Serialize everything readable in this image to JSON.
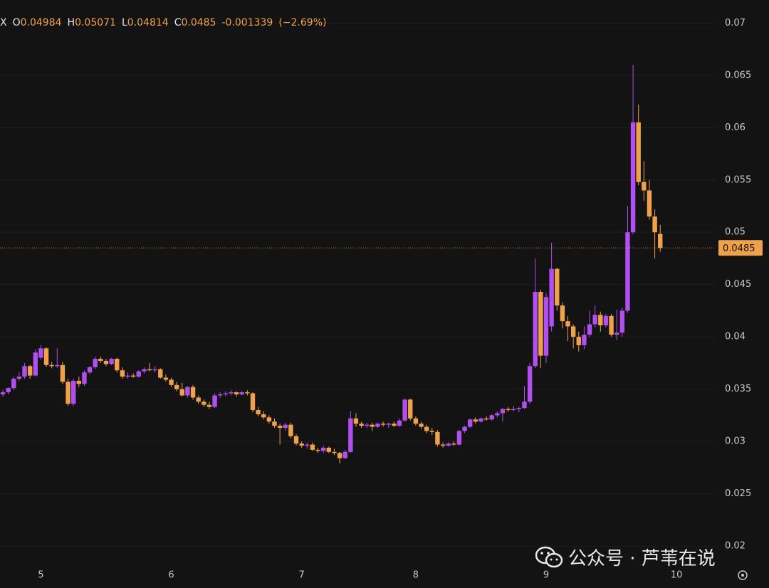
{
  "header": {
    "symbol": "X",
    "items": [
      {
        "key": "O",
        "value": "0.04984"
      },
      {
        "key": "H",
        "value": "0.05071"
      },
      {
        "key": "L",
        "value": "0.04814"
      },
      {
        "key": "C",
        "value": "0.0485"
      }
    ],
    "change": "-0.001339",
    "change_pct": "(−2.69%)"
  },
  "watermark": "公众号 · 芦苇在说",
  "chart_data": {
    "type": "candlestick",
    "up_color": "#b14ff0",
    "down_color": "#f0a24a",
    "ylim": [
      0.0181,
      0.0722
    ],
    "yticks": [
      0.02,
      0.025,
      0.03,
      0.035,
      0.04,
      0.045,
      0.05,
      0.055,
      0.06,
      0.065,
      0.07
    ],
    "grid": true,
    "last_price": 0.0485,
    "categories": [
      null,
      null,
      null,
      null,
      null,
      null,
      null,
      "5",
      null,
      null,
      null,
      null,
      null,
      null,
      null,
      null,
      null,
      null,
      null,
      null,
      null,
      null,
      null,
      null,
      null,
      null,
      null,
      null,
      null,
      null,
      null,
      "6",
      null,
      null,
      null,
      null,
      null,
      null,
      null,
      null,
      null,
      null,
      null,
      null,
      null,
      null,
      null,
      null,
      null,
      null,
      null,
      null,
      null,
      null,
      null,
      "7",
      null,
      null,
      null,
      null,
      null,
      null,
      null,
      null,
      null,
      null,
      null,
      null,
      null,
      null,
      null,
      null,
      null,
      null,
      null,
      null,
      "8",
      null,
      null,
      null,
      null,
      null,
      null,
      null,
      null,
      null,
      null,
      null,
      null,
      null,
      null,
      null,
      null,
      null,
      null,
      null,
      null,
      null,
      null,
      null,
      "9",
      null,
      null,
      null,
      null,
      null,
      null,
      null,
      null,
      null,
      null,
      null,
      null,
      null,
      null,
      null,
      null,
      null,
      null,
      null,
      null,
      null,
      null,
      null,
      "10"
    ],
    "open": [
      0.0345,
      0.0347,
      0.0351,
      0.036,
      0.0362,
      0.0372,
      0.0363,
      0.038,
      0.0389,
      0.0373,
      0.0372,
      0.0373,
      0.0357,
      0.0336,
      0.0358,
      0.0355,
      0.0366,
      0.0371,
      0.0379,
      0.0377,
      0.0374,
      0.0379,
      0.0368,
      0.0362,
      0.0363,
      0.0362,
      0.0367,
      0.0369,
      0.0368,
      0.0369,
      0.0361,
      0.0359,
      0.0354,
      0.035,
      0.0344,
      0.0352,
      0.0342,
      0.0338,
      0.0335,
      0.0333,
      0.0344,
      0.0345,
      0.0346,
      0.0347,
      0.0345,
      0.0347,
      0.0346,
      0.033,
      0.0326,
      0.0323,
      0.0319,
      0.0315,
      0.0313,
      0.0316,
      0.0305,
      0.0298,
      0.0296,
      0.0297,
      0.0292,
      0.0291,
      0.0294,
      0.029,
      0.0289,
      0.0284,
      0.029,
      0.0322,
      0.0317,
      0.0315,
      0.0316,
      0.0314,
      0.0317,
      0.0316,
      0.0317,
      0.0315,
      0.032,
      0.034,
      0.0322,
      0.0317,
      0.0314,
      0.031,
      0.0309,
      0.0297,
      0.0296,
      0.0298,
      0.0297,
      0.031,
      0.0314,
      0.0321,
      0.0319,
      0.0322,
      0.0321,
      0.0325,
      0.0327,
      0.0331,
      0.033,
      0.0331,
      0.0332,
      0.0338,
      0.0372,
      0.0443,
      0.0382,
      0.041,
      0.0465,
      0.043,
      0.0415,
      0.041,
      0.04,
      0.0392,
      0.0402,
      0.0412,
      0.0421,
      0.0411,
      0.042,
      0.0402,
      0.0404,
      0.0425,
      0.05,
      0.0605,
      0.0548,
      0.054,
      0.0515,
      0.04984,
      null,
      null,
      null
    ],
    "high": [
      0.0349,
      0.0352,
      0.0362,
      0.0366,
      0.0375,
      0.0373,
      0.0388,
      0.0392,
      0.039,
      0.0376,
      0.0389,
      0.0376,
      0.036,
      0.036,
      0.0362,
      0.0368,
      0.0372,
      0.0381,
      0.0381,
      0.0379,
      0.038,
      0.038,
      0.0371,
      0.0366,
      0.0365,
      0.0368,
      0.0371,
      0.0375,
      0.0372,
      0.037,
      0.0364,
      0.0361,
      0.0357,
      0.0356,
      0.0353,
      0.0354,
      0.0344,
      0.034,
      0.0338,
      0.0346,
      0.0347,
      0.0348,
      0.0349,
      0.0348,
      0.0348,
      0.0349,
      0.0347,
      0.0333,
      0.0329,
      0.0325,
      0.0322,
      0.0317,
      0.0318,
      0.0318,
      0.0307,
      0.03,
      0.0299,
      0.0299,
      0.0294,
      0.0296,
      0.0295,
      0.0293,
      0.029,
      0.0292,
      0.0329,
      0.0327,
      0.0319,
      0.0318,
      0.0318,
      0.0318,
      0.0319,
      0.0318,
      0.0319,
      0.0322,
      0.0341,
      0.0341,
      0.0324,
      0.0319,
      0.0316,
      0.0313,
      0.0311,
      0.0299,
      0.0299,
      0.03,
      0.0311,
      0.0315,
      0.0322,
      0.0323,
      0.0323,
      0.0324,
      0.0326,
      0.0329,
      0.0332,
      0.0333,
      0.0334,
      0.0333,
      0.0353,
      0.0375,
      0.0475,
      0.0445,
      0.0442,
      0.049,
      0.0466,
      0.0433,
      0.042,
      0.0412,
      0.0405,
      0.041,
      0.0425,
      0.043,
      0.0424,
      0.0422,
      0.0422,
      0.0426,
      0.0428,
      0.0525,
      0.066,
      0.0622,
      0.0568,
      0.055,
      0.0522,
      0.05071,
      null,
      null,
      null
    ],
    "low": [
      0.0343,
      0.0345,
      0.0349,
      0.0358,
      0.036,
      0.036,
      0.0362,
      0.0378,
      0.0371,
      0.037,
      0.037,
      0.0355,
      0.0334,
      0.0334,
      0.0352,
      0.0353,
      0.0364,
      0.0369,
      0.0375,
      0.0372,
      0.0373,
      0.0366,
      0.036,
      0.036,
      0.0361,
      0.0361,
      0.0365,
      0.0367,
      0.0366,
      0.036,
      0.0357,
      0.0352,
      0.0348,
      0.0343,
      0.0342,
      0.034,
      0.0336,
      0.0333,
      0.0331,
      0.0332,
      0.0342,
      0.0343,
      0.0344,
      0.0343,
      0.0344,
      0.0344,
      0.0328,
      0.0324,
      0.0321,
      0.0317,
      0.0313,
      0.0297,
      0.031,
      0.0303,
      0.0296,
      0.0294,
      0.0293,
      0.0291,
      0.0289,
      0.0289,
      0.0289,
      0.0287,
      0.0279,
      0.0283,
      0.0289,
      0.0314,
      0.0313,
      0.0313,
      0.031,
      0.0313,
      0.0314,
      0.0313,
      0.0314,
      0.0314,
      0.0319,
      0.032,
      0.0315,
      0.0312,
      0.0308,
      0.0306,
      0.0295,
      0.0294,
      0.0295,
      0.0296,
      0.0296,
      0.0308,
      0.0313,
      0.0317,
      0.0318,
      0.032,
      0.032,
      0.0323,
      0.0319,
      0.0328,
      0.0329,
      0.0328,
      0.0331,
      0.0336,
      0.037,
      0.037,
      0.0375,
      0.0405,
      0.0425,
      0.0408,
      0.0396,
      0.0389,
      0.0386,
      0.0388,
      0.04,
      0.0409,
      0.0405,
      0.0409,
      0.04,
      0.0397,
      0.04,
      0.0423,
      0.0498,
      0.0545,
      0.053,
      0.0512,
      0.0475,
      0.04814,
      null,
      null,
      null
    ],
    "close": [
      0.0347,
      0.0351,
      0.036,
      0.0362,
      0.0372,
      0.0363,
      0.0385,
      0.0389,
      0.0373,
      0.0372,
      0.0373,
      0.0357,
      0.0336,
      0.0358,
      0.0355,
      0.0366,
      0.0371,
      0.0379,
      0.0377,
      0.0374,
      0.0379,
      0.0368,
      0.0362,
      0.0363,
      0.0362,
      0.0367,
      0.0369,
      0.0368,
      0.0369,
      0.0361,
      0.0359,
      0.0354,
      0.035,
      0.0344,
      0.0352,
      0.0342,
      0.0338,
      0.0335,
      0.0333,
      0.0344,
      0.0345,
      0.0346,
      0.0347,
      0.0345,
      0.0347,
      0.0346,
      0.033,
      0.0326,
      0.0323,
      0.0319,
      0.0315,
      0.0313,
      0.0316,
      0.0305,
      0.0298,
      0.0296,
      0.0297,
      0.0292,
      0.0291,
      0.0294,
      0.029,
      0.0289,
      0.0284,
      0.029,
      0.0322,
      0.0317,
      0.0315,
      0.0316,
      0.0314,
      0.0317,
      0.0316,
      0.0317,
      0.0315,
      0.032,
      0.034,
      0.0322,
      0.0317,
      0.0314,
      0.031,
      0.0309,
      0.0297,
      0.0296,
      0.0298,
      0.0297,
      0.031,
      0.0314,
      0.0321,
      0.0319,
      0.0322,
      0.0321,
      0.0325,
      0.0327,
      0.0331,
      0.033,
      0.0331,
      0.0332,
      0.0338,
      0.0372,
      0.0443,
      0.0382,
      0.0438,
      0.0465,
      0.043,
      0.0415,
      0.041,
      0.04,
      0.0392,
      0.0402,
      0.0412,
      0.0421,
      0.0411,
      0.042,
      0.0402,
      0.0404,
      0.0425,
      0.05,
      0.0605,
      0.0548,
      0.054,
      0.0515,
      0.05,
      0.0485,
      null,
      null,
      null
    ]
  }
}
